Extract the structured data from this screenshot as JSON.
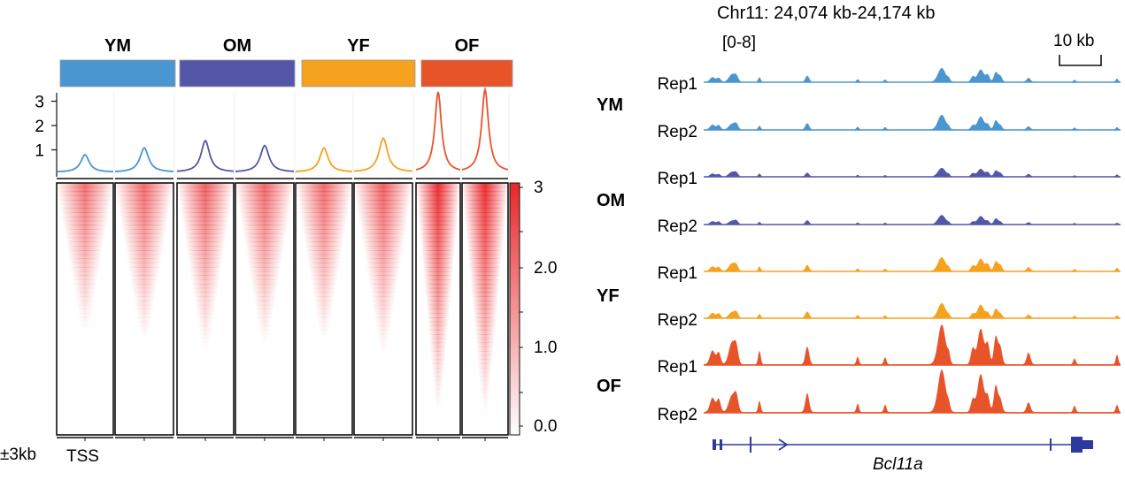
{
  "heatmap_panel": {
    "groups": [
      {
        "label": "YM",
        "color": "#4a96d0",
        "profile_peaks": [
          0.72,
          1.0
        ]
      },
      {
        "label": "OM",
        "color": "#5457a8",
        "profile_peaks": [
          1.3,
          1.1
        ]
      },
      {
        "label": "YF",
        "color": "#f5a21f",
        "profile_peaks": [
          1.0,
          1.4
        ]
      },
      {
        "label": "OF",
        "color": "#e8542a",
        "profile_peaks": [
          3.3,
          3.4
        ]
      }
    ],
    "profile_y_ticks": [
      "1",
      "2",
      "3"
    ],
    "colorbar_ticks": [
      "3",
      "2.0",
      "1.0",
      "0.0"
    ],
    "x_range_label": "±3kb",
    "x_center_label": "TSS"
  },
  "track_panel": {
    "locus": "Chr11: 24,074 kb-24,174 kb",
    "range_label": "[0-8]",
    "scalebar_label": "10 kb",
    "groups": [
      {
        "label": "YM",
        "color": "#4a96d0",
        "reps": [
          "Rep1",
          "Rep2"
        ],
        "scale": 0.35
      },
      {
        "label": "OM",
        "color": "#5457a8",
        "reps": [
          "Rep1",
          "Rep2"
        ],
        "scale": 0.22
      },
      {
        "label": "YF",
        "color": "#f5a21f",
        "reps": [
          "Rep1",
          "Rep2"
        ],
        "scale": 0.35
      },
      {
        "label": "OF",
        "color": "#e8542a",
        "reps": [
          "Rep1",
          "Rep2"
        ],
        "scale": 1.0
      }
    ],
    "gene_name": "Bcl11a",
    "gene_color": "#2b3a9c"
  }
}
